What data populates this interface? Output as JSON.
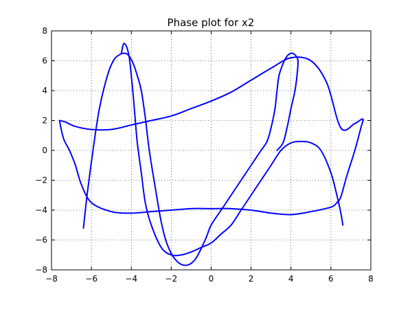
{
  "chart_data": {
    "type": "line",
    "title": "Phase plot for x2",
    "xlabel": "",
    "ylabel": "",
    "xlim": [
      -8,
      8
    ],
    "ylim": [
      -8,
      8
    ],
    "xticks": [
      -8,
      -6,
      -4,
      -2,
      0,
      2,
      4,
      6,
      8
    ],
    "yticks": [
      -8,
      -6,
      -4,
      -2,
      0,
      2,
      4,
      6,
      8
    ],
    "grid": true,
    "colors": {
      "line": "#0000ff",
      "grid": "#000000",
      "axes": "#000000"
    },
    "series": [
      {
        "x": [
          -7.6,
          -7.3,
          -6.8,
          -6.0,
          -5.0,
          -4.0,
          -3.0,
          -2.0,
          -1.0,
          0.0,
          1.0,
          2.0,
          3.0,
          4.0,
          5.0,
          5.8,
          6.5,
          7.2,
          7.6,
          7.5,
          7.2,
          6.8,
          6.5,
          6.3,
          6.0,
          5.0,
          4.0,
          3.0,
          2.0,
          1.0,
          0.0,
          -1.0,
          -2.0,
          -3.0,
          -4.0,
          -5.0,
          -6.0,
          -6.5,
          -6.8,
          -7.1,
          -7.4,
          -7.6
        ],
        "y": [
          2.0,
          1.9,
          1.6,
          1.4,
          1.4,
          1.7,
          2.0,
          2.3,
          2.8,
          3.3,
          3.9,
          4.7,
          5.5,
          6.2,
          6.0,
          4.5,
          1.5,
          1.8,
          2.1,
          1.5,
          0.0,
          -1.7,
          -3.1,
          -3.5,
          -3.8,
          -4.1,
          -4.3,
          -4.2,
          -4.0,
          -3.9,
          -3.9,
          -3.9,
          -4.0,
          -4.1,
          -4.2,
          -4.1,
          -3.5,
          -2.3,
          -1.0,
          0.0,
          0.8,
          2.0
        ]
      },
      {
        "x": [
          -6.4,
          -6.2,
          -5.9,
          -5.6,
          -5.2,
          -4.9,
          -4.6,
          -4.3,
          -4.1,
          -3.9,
          -3.7,
          -3.5,
          -3.3,
          -3.1,
          -2.8,
          -2.5,
          -2.2,
          -1.8,
          -1.3,
          -0.8,
          -0.3,
          0.0,
          0.5,
          1.0,
          1.5,
          2.0,
          2.5,
          2.8,
          3.0,
          3.2,
          3.3,
          3.4,
          3.6,
          3.8,
          4.0,
          4.2,
          4.35,
          4.3,
          4.2,
          4.0,
          3.8,
          3.6,
          3.3
        ],
        "y": [
          -5.2,
          -2.8,
          0.2,
          2.8,
          5.0,
          6.0,
          6.4,
          6.5,
          6.3,
          5.8,
          5.0,
          4.0,
          2.2,
          0.0,
          -2.5,
          -4.8,
          -6.3,
          -7.3,
          -7.7,
          -7.3,
          -6.0,
          -5.0,
          -4.0,
          -3.0,
          -2.0,
          -1.0,
          0.0,
          0.6,
          1.5,
          2.8,
          4.0,
          5.0,
          5.8,
          6.3,
          6.5,
          6.4,
          6.0,
          5.0,
          4.0,
          2.8,
          1.5,
          0.5,
          0.0
        ]
      },
      {
        "x": [
          -4.5,
          -4.4,
          -4.3,
          -4.2,
          -4.1,
          -4.0,
          -3.9,
          -3.8,
          -3.7,
          -3.5,
          -3.3,
          -3.0,
          -2.5,
          -2.0,
          -1.5,
          -1.0,
          -0.5,
          0.0,
          0.5,
          1.0,
          1.5,
          2.0,
          2.5,
          3.0,
          3.5,
          4.0,
          4.5,
          5.0,
          5.5,
          6.0,
          6.3,
          6.5,
          6.6
        ],
        "y": [
          6.5,
          7.1,
          7.1,
          6.8,
          6.2,
          5.0,
          3.6,
          2.0,
          0.5,
          -1.5,
          -3.5,
          -5.0,
          -6.5,
          -7.0,
          -7.0,
          -6.8,
          -6.5,
          -6.2,
          -5.6,
          -5.0,
          -4.0,
          -3.0,
          -2.0,
          -1.0,
          0.0,
          0.5,
          0.6,
          0.5,
          0.0,
          -1.5,
          -3.0,
          -4.2,
          -5.0
        ]
      }
    ]
  }
}
